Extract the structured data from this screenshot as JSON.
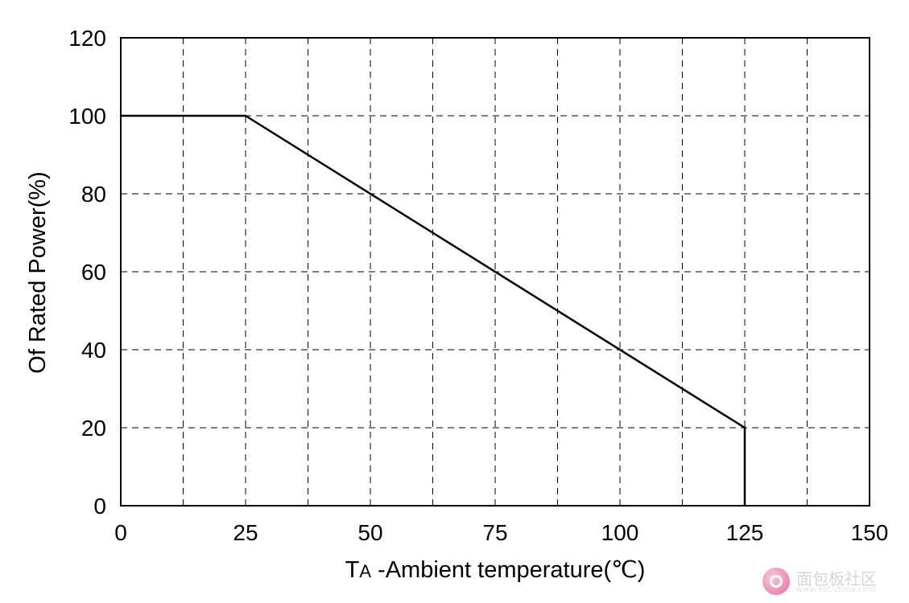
{
  "chart_data": {
    "type": "line",
    "title": "",
    "xlabel_main": "T",
    "xlabel_sub": "A",
    "xlabel_rest": " -Ambient temperature(℃)",
    "ylabel": "Of Rated Power(%)",
    "xlim": [
      0,
      150
    ],
    "ylim": [
      0,
      120
    ],
    "x_ticks": [
      "0",
      "25",
      "50",
      "75",
      "100",
      "125",
      "150"
    ],
    "y_ticks": [
      "0",
      "20",
      "40",
      "60",
      "80",
      "100",
      "120"
    ],
    "x_minor_grid": [
      12.5,
      37.5,
      62.5,
      87.5,
      112.5,
      137.5
    ],
    "grid": true,
    "series": [
      {
        "x": [
          0,
          25,
          125,
          125
        ],
        "y": [
          100,
          100,
          20,
          0
        ]
      }
    ]
  },
  "watermark": {
    "text": "面包板社区",
    "sub": "www.eet-china.com"
  }
}
